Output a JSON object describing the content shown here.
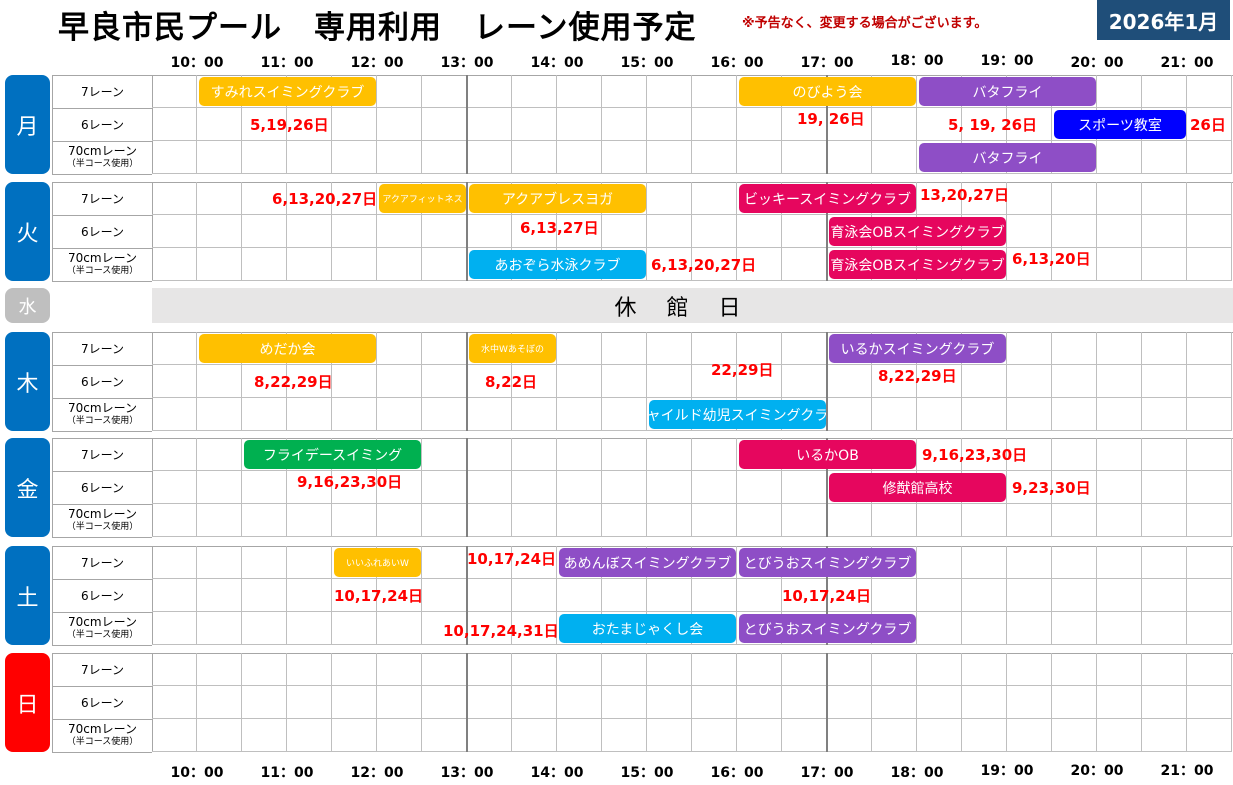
{
  "header": {
    "title": "早良市民プール　専用利用　レーン使用予定",
    "notice": "※予告なく、変更する場合がございます。",
    "month": "2026年1月"
  },
  "times": [
    "10：00",
    "11：00",
    "12：00",
    "13：00",
    "14：00",
    "15：00",
    "16：00",
    "17：00",
    "18：00",
    "19：00",
    "20：00",
    "21：00"
  ],
  "lanes": [
    "7レーン",
    "6レーン",
    "70cmレーン"
  ],
  "lane_sub": "（半コース使用）",
  "days": [
    {
      "label": "月",
      "color": "#0070c0"
    },
    {
      "label": "火",
      "color": "#0070c0"
    },
    {
      "label": "水",
      "color": "#bfbfbf",
      "closed": "休館日"
    },
    {
      "label": "木",
      "color": "#0070c0"
    },
    {
      "label": "金",
      "color": "#0070c0"
    },
    {
      "label": "土",
      "color": "#0070c0"
    },
    {
      "label": "日",
      "color": "#ff0000"
    }
  ],
  "colors": {
    "yellow": "#ffc000",
    "purple": "#8e4ec6",
    "blue": "#0000ff",
    "pink": "#e6065e",
    "cyan": "#00b0f0",
    "green": "#00b050"
  },
  "bookings": [
    {
      "day": 0,
      "lane": 0,
      "name": "すみれスイミングクラブ",
      "start": 10,
      "end": 12,
      "color": "yellow"
    },
    {
      "day": 0,
      "lane": 0,
      "name": "のびよう会",
      "start": 16,
      "end": 18,
      "color": "yellow"
    },
    {
      "day": 0,
      "lane": 0,
      "name": "バタフライ",
      "start": 18,
      "end": 20,
      "color": "purple"
    },
    {
      "day": 0,
      "lane": 1,
      "name": "スポーツ教室",
      "start": 19.5,
      "end": 21,
      "color": "blue"
    },
    {
      "day": 0,
      "lane": 2,
      "name": "バタフライ",
      "start": 18,
      "end": 20,
      "color": "purple"
    },
    {
      "day": 1,
      "lane": 0,
      "name": "アクアフィットネス",
      "start": 12,
      "end": 13,
      "color": "yellow",
      "small": true
    },
    {
      "day": 1,
      "lane": 0,
      "name": "アクアブレスヨガ",
      "start": 13,
      "end": 15,
      "color": "yellow"
    },
    {
      "day": 1,
      "lane": 0,
      "name": "ビッキースイミングクラブ",
      "start": 16,
      "end": 18,
      "color": "pink"
    },
    {
      "day": 1,
      "lane": 1,
      "name": "育泳会OBスイミングクラブ",
      "start": 17,
      "end": 19,
      "color": "pink"
    },
    {
      "day": 1,
      "lane": 2,
      "name": "あおぞら水泳クラブ",
      "start": 13,
      "end": 15,
      "color": "cyan"
    },
    {
      "day": 1,
      "lane": 2,
      "name": "育泳会OBスイミングクラブ",
      "start": 17,
      "end": 19,
      "color": "pink"
    },
    {
      "day": 3,
      "lane": 0,
      "name": "めだか会",
      "start": 10,
      "end": 12,
      "color": "yellow"
    },
    {
      "day": 3,
      "lane": 0,
      "name": "水中Wあそぼの",
      "start": 13,
      "end": 14,
      "color": "yellow",
      "small": true
    },
    {
      "day": 3,
      "lane": 0,
      "name": "いるかスイミングクラブ",
      "start": 17,
      "end": 19,
      "color": "purple"
    },
    {
      "day": 3,
      "lane": 2,
      "name": "チャイルド幼児スイミングクラブ",
      "start": 15,
      "end": 17,
      "color": "cyan"
    },
    {
      "day": 4,
      "lane": 0,
      "name": "フライデースイミング",
      "start": 10.5,
      "end": 12.5,
      "color": "green"
    },
    {
      "day": 4,
      "lane": 0,
      "name": "いるかOB",
      "start": 16,
      "end": 18,
      "color": "pink"
    },
    {
      "day": 4,
      "lane": 1,
      "name": "修猷館高校",
      "start": 17,
      "end": 19,
      "color": "pink"
    },
    {
      "day": 5,
      "lane": 0,
      "name": "いいふれあいW",
      "start": 11.5,
      "end": 12.5,
      "color": "yellow",
      "small": true
    },
    {
      "day": 5,
      "lane": 0,
      "name": "あめんぼスイミングクラブ",
      "start": 14,
      "end": 16,
      "color": "purple"
    },
    {
      "day": 5,
      "lane": 0,
      "name": "とびうおスイミングクラブ",
      "start": 16,
      "end": 18,
      "color": "purple"
    },
    {
      "day": 5,
      "lane": 2,
      "name": "おたまじゃくし会",
      "start": 14,
      "end": 16,
      "color": "cyan"
    },
    {
      "day": 5,
      "lane": 2,
      "name": "とびうおスイミングクラブ",
      "start": 16,
      "end": 18,
      "color": "purple"
    }
  ],
  "notes": [
    {
      "day": 0,
      "lane": 1,
      "text": "5,19,26日"
    },
    {
      "day": 0,
      "lane": 1,
      "text": "19, 26日"
    },
    {
      "day": 0,
      "lane": 1,
      "text": "5, 19, 26日"
    },
    {
      "day": 0,
      "lane": 1,
      "text": "26日"
    },
    {
      "day": 1,
      "lane": 0,
      "text": "6,13,20,27日"
    },
    {
      "day": 1,
      "lane": 0,
      "text": "13,20,27日"
    },
    {
      "day": 1,
      "lane": 1,
      "text": "6,13,27日"
    },
    {
      "day": 1,
      "lane": 2,
      "text": "6,13,20,27日"
    },
    {
      "day": 1,
      "lane": 2,
      "text": "6,13,20日"
    },
    {
      "day": 3,
      "lane": 1,
      "text": "8,22,29日"
    },
    {
      "day": 3,
      "lane": 1,
      "text": "8,22日"
    },
    {
      "day": 3,
      "lane": 1,
      "text": "22,29日"
    },
    {
      "day": 3,
      "lane": 1,
      "text": "8,22,29日"
    },
    {
      "day": 4,
      "lane": 0,
      "text": "9,16,23,30日"
    },
    {
      "day": 4,
      "lane": 1,
      "text": "9,16,23,30日"
    },
    {
      "day": 4,
      "lane": 1,
      "text": "9,23,30日"
    },
    {
      "day": 5,
      "lane": 0,
      "text": "10,17,24日"
    },
    {
      "day": 5,
      "lane": 1,
      "text": "10,17,24日"
    },
    {
      "day": 5,
      "lane": 1,
      "text": "10,17,24日"
    },
    {
      "day": 5,
      "lane": 2,
      "text": "10,17,24,31日"
    }
  ]
}
